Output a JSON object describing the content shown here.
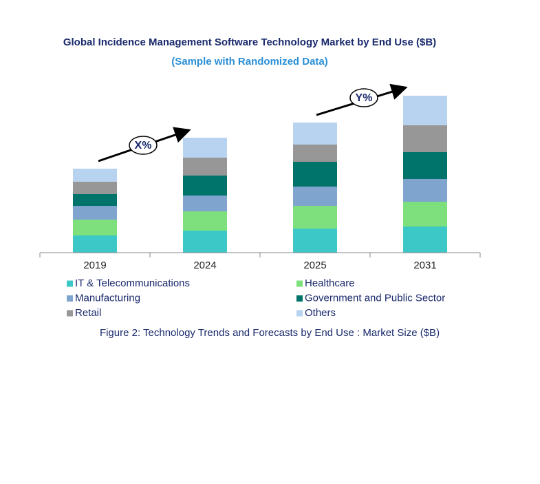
{
  "chart_data": {
    "type": "stacked_bar",
    "title": "Global Incidence Management Software Technology Market by End Use ($B)",
    "subtitle": "(Sample with Randomized Data)",
    "caption": "Figure 2: Technology  Trends  and Forecasts by End Use : Market Size ($B)",
    "annotations": [
      "X%",
      "Y%"
    ],
    "categories": [
      "2019",
      "2024",
      "2025",
      "2031"
    ],
    "series": [
      {
        "name": "IT & Telecommunications",
        "color": "#3cc8c6",
        "values": [
          25,
          32,
          35,
          38
        ]
      },
      {
        "name": "Healthcare",
        "color": "#7ee07c",
        "values": [
          23,
          28,
          33,
          36
        ]
      },
      {
        "name": "Manufacturing",
        "color": "#7fa5cf",
        "values": [
          20,
          23,
          28,
          33
        ]
      },
      {
        "name": "Government and Public Sector",
        "color": "#00736a",
        "values": [
          17,
          29,
          36,
          39
        ]
      },
      {
        "name": "Retail",
        "color": "#979797",
        "values": [
          18,
          26,
          25,
          39
        ]
      },
      {
        "name": "Others",
        "color": "#b8d3ef",
        "values": [
          19,
          29,
          32,
          43
        ]
      }
    ]
  }
}
